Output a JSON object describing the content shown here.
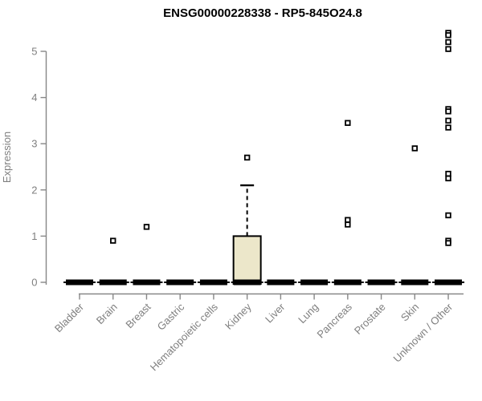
{
  "chart_data": {
    "type": "boxplot",
    "title": "ENSG00000228338 - RP5-845O24.8",
    "ylabel": "Expression",
    "xlabel": "",
    "ylim": [
      0,
      5.5
    ],
    "yticks": [
      0,
      1,
      2,
      3,
      4,
      5
    ],
    "grid": false,
    "legend": "none",
    "marker": "open-square",
    "style": {
      "box_fill_color": "#ECE7CA",
      "box_stroke_color": "#000000",
      "bar_color": "#000000",
      "axis_color": "#878787",
      "text_color": "#7f7f7f",
      "title_color": "#000000"
    },
    "categories": [
      "Bladder",
      "Brain",
      "Breast",
      "Gastric",
      "Hematopoietic cells",
      "Kidney",
      "Liver",
      "Lung",
      "Pancreas",
      "Prostate",
      "Skin",
      "Unknown / Other"
    ],
    "boxes": [
      {
        "category": "Bladder",
        "median": 0,
        "q1": 0,
        "q3": 0,
        "whisker_low": 0,
        "whisker_high": 0,
        "outliers": []
      },
      {
        "category": "Brain",
        "median": 0,
        "q1": 0,
        "q3": 0,
        "whisker_low": 0,
        "whisker_high": 0,
        "outliers": [
          0.9
        ]
      },
      {
        "category": "Breast",
        "median": 0,
        "q1": 0,
        "q3": 0,
        "whisker_low": 0,
        "whisker_high": 0,
        "outliers": [
          1.2
        ]
      },
      {
        "category": "Gastric",
        "median": 0,
        "q1": 0,
        "q3": 0,
        "whisker_low": 0,
        "whisker_high": 0,
        "outliers": []
      },
      {
        "category": "Hematopoietic cells",
        "median": 0,
        "q1": 0,
        "q3": 0,
        "whisker_low": 0,
        "whisker_high": 0,
        "outliers": []
      },
      {
        "category": "Kidney",
        "median": 0,
        "q1": 0,
        "q3": 1.0,
        "whisker_low": 0,
        "whisker_high": 2.1,
        "outliers": [
          2.7
        ]
      },
      {
        "category": "Liver",
        "median": 0,
        "q1": 0,
        "q3": 0,
        "whisker_low": 0,
        "whisker_high": 0,
        "outliers": []
      },
      {
        "category": "Lung",
        "median": 0,
        "q1": 0,
        "q3": 0,
        "whisker_low": 0,
        "whisker_high": 0,
        "outliers": []
      },
      {
        "category": "Pancreas",
        "median": 0,
        "q1": 0,
        "q3": 0,
        "whisker_low": 0,
        "whisker_high": 0,
        "outliers": [
          3.45,
          1.35,
          1.25
        ]
      },
      {
        "category": "Prostate",
        "median": 0,
        "q1": 0,
        "q3": 0,
        "whisker_low": 0,
        "whisker_high": 0,
        "outliers": []
      },
      {
        "category": "Skin",
        "median": 0,
        "q1": 0,
        "q3": 0,
        "whisker_low": 0,
        "whisker_high": 0,
        "outliers": [
          2.9
        ]
      },
      {
        "category": "Unknown / Other",
        "median": 0,
        "q1": 0,
        "q3": 0,
        "whisker_low": 0,
        "whisker_high": 0,
        "outliers": [
          5.4,
          5.35,
          5.2,
          5.05,
          3.75,
          3.7,
          3.5,
          3.35,
          2.35,
          2.25,
          1.45,
          0.9,
          0.85
        ]
      }
    ]
  }
}
